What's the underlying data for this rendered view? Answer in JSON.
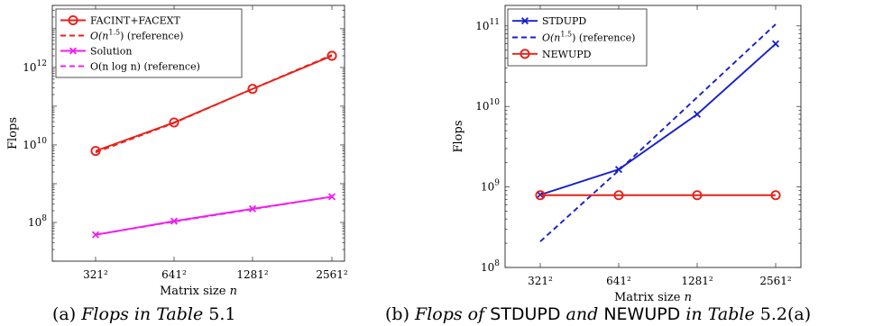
{
  "chart_data": [
    {
      "type": "line",
      "x_scale": "log2",
      "y_scale": "log",
      "categories": [
        "321²",
        "641²",
        "1281²",
        "2561²"
      ],
      "x": [
        103041,
        410881,
        1640961,
        6558721
      ],
      "xlabel_prefix": "Matrix size ",
      "xlabel_var": "n",
      "ylabel": "Flops",
      "ylim": [
        10000000.0,
        40000000000000.0
      ],
      "yticks": [
        100000000.0,
        10000000000.0,
        1000000000000.0
      ],
      "ytick_labels": [
        {
          "base": "10",
          "exp": "8"
        },
        {
          "base": "10",
          "exp": "10"
        },
        {
          "base": "10",
          "exp": "12"
        }
      ],
      "legend_position": "top-left",
      "series": [
        {
          "name": "FACINT+FACEXT",
          "values": [
            7000000000.0,
            38000000000.0,
            280000000000.0,
            2000000000000.0
          ],
          "color": "#e8201a",
          "style": "solid",
          "marker": "circle"
        },
        {
          "name": "O(n^1.5) (reference)",
          "legend_parts": [
            "O(n",
            "1.5",
            ") (reference)"
          ],
          "values": [
            6400000000.0,
            37000000000.0,
            280000000000.0,
            2100000000000.0
          ],
          "color": "#e8201a",
          "style": "dashed",
          "marker": "none"
        },
        {
          "name": "Solution",
          "values": [
            48000000.0,
            108000000.0,
            225000000.0,
            460000000.0
          ],
          "color": "#f01ef0",
          "style": "solid",
          "marker": "x"
        },
        {
          "name": "O(n log n) (reference)",
          "legend_parts": [
            "O(n log n) (reference)"
          ],
          "values": [
            48000000.0,
            105000000.0,
            220000000.0,
            460000000.0
          ],
          "color": "#f01ef0",
          "style": "dashed",
          "marker": "none"
        }
      ],
      "caption": {
        "label": "(a)",
        "text": "Flops in Table",
        "ref": "5.1"
      }
    },
    {
      "type": "line",
      "x_scale": "log2",
      "y_scale": "log",
      "categories": [
        "321²",
        "641²",
        "1281²",
        "2561²"
      ],
      "x": [
        103041,
        410881,
        1640961,
        6558721
      ],
      "xlabel_prefix": "Matrix size ",
      "xlabel_var": "n",
      "ylabel": "Flops",
      "ylim": [
        100000000.0,
        180000000000.0
      ],
      "yticks": [
        100000000.0,
        1000000000.0,
        10000000000.0,
        100000000000.0
      ],
      "ytick_labels": [
        {
          "base": "10",
          "exp": "8"
        },
        {
          "base": "10",
          "exp": "9"
        },
        {
          "base": "10",
          "exp": "10"
        },
        {
          "base": "10",
          "exp": "11"
        }
      ],
      "legend_position": "top-left",
      "series": [
        {
          "name": "STDUPD",
          "values": [
            800000000.0,
            1650000000.0,
            8000000000.0,
            60000000000.0
          ],
          "color": "#1520cc",
          "style": "solid",
          "marker": "x"
        },
        {
          "name": "O(n^1.5) (reference)",
          "legend_parts": [
            "O(n",
            "1.5",
            ") (reference)"
          ],
          "values": [
            210000000.0,
            1600000000.0,
            13000000000.0,
            105000000000.0
          ],
          "color": "#1520cc",
          "style": "dashed",
          "marker": "none"
        },
        {
          "name": "NEWUPD",
          "values": [
            790000000.0,
            790000000.0,
            790000000.0,
            790000000.0
          ],
          "color": "#e8201a",
          "style": "solid",
          "marker": "circle"
        }
      ],
      "caption": {
        "label": "(b)",
        "pre": "Flops of",
        "s1": "STDUPD",
        "mid": "and",
        "s2": "NEWUPD",
        "post": "in Table",
        "ref": "5.2(a)"
      }
    }
  ]
}
